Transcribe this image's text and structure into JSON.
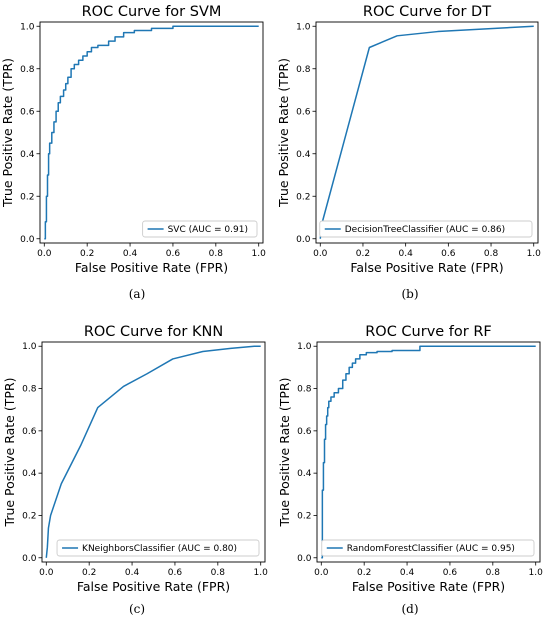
{
  "colors": {
    "line": "#1f77b4",
    "axis": "#000000",
    "legend_border": "#cccccc"
  },
  "chart_data": [
    {
      "type": "line",
      "panel": "a",
      "title": "ROC Curve for SVM",
      "xlabel": "False Positive Rate (FPR)",
      "ylabel": "True Positive Rate (TPR)",
      "xlim": [
        0,
        1
      ],
      "ylim": [
        0,
        1
      ],
      "xticks": [
        "0.0",
        "0.2",
        "0.4",
        "0.6",
        "0.8",
        "1.0"
      ],
      "yticks": [
        "0.0",
        "0.2",
        "0.4",
        "0.6",
        "0.8",
        "1.0"
      ],
      "legend": "lower-right",
      "caption": "(a)",
      "series": [
        {
          "name": "SVC (AUC = 0.91)",
          "x": [
            0,
            0.005,
            0.005,
            0.01,
            0.01,
            0.015,
            0.015,
            0.02,
            0.02,
            0.025,
            0.025,
            0.035,
            0.035,
            0.045,
            0.045,
            0.055,
            0.055,
            0.065,
            0.065,
            0.075,
            0.075,
            0.09,
            0.09,
            0.1,
            0.1,
            0.11,
            0.11,
            0.125,
            0.125,
            0.14,
            0.14,
            0.16,
            0.16,
            0.18,
            0.18,
            0.2,
            0.2,
            0.22,
            0.22,
            0.25,
            0.25,
            0.3,
            0.3,
            0.33,
            0.33,
            0.37,
            0.37,
            0.42,
            0.42,
            0.5,
            0.5,
            0.6,
            0.6,
            1.0
          ],
          "y": [
            0,
            0,
            0.08,
            0.08,
            0.2,
            0.2,
            0.3,
            0.3,
            0.4,
            0.4,
            0.45,
            0.45,
            0.5,
            0.5,
            0.55,
            0.55,
            0.6,
            0.6,
            0.64,
            0.64,
            0.67,
            0.67,
            0.7,
            0.7,
            0.73,
            0.73,
            0.76,
            0.76,
            0.8,
            0.8,
            0.82,
            0.82,
            0.84,
            0.84,
            0.86,
            0.86,
            0.88,
            0.88,
            0.9,
            0.9,
            0.91,
            0.91,
            0.93,
            0.93,
            0.95,
            0.95,
            0.97,
            0.97,
            0.98,
            0.98,
            0.99,
            0.99,
            1.0,
            1.0
          ]
        }
      ]
    },
    {
      "type": "line",
      "panel": "b",
      "title": "ROC Curve for DT",
      "xlabel": "False Positive Rate (FPR)",
      "ylabel": "True Positive Rate (TPR)",
      "xlim": [
        0,
        1
      ],
      "ylim": [
        0,
        1
      ],
      "xticks": [
        "0.0",
        "0.2",
        "0.4",
        "0.6",
        "0.8",
        "1.0"
      ],
      "yticks": [
        "0.0",
        "0.2",
        "0.4",
        "0.6",
        "0.8",
        "1.0"
      ],
      "legend": "lower-right",
      "caption": "(b)",
      "series": [
        {
          "name": "DecisionTreeClassifier (AUC = 0.86)",
          "x": [
            0,
            0.01,
            0.23,
            0.36,
            0.55,
            1.0
          ],
          "y": [
            0,
            0.08,
            0.9,
            0.955,
            0.975,
            1.0
          ]
        }
      ]
    },
    {
      "type": "line",
      "panel": "c",
      "title": "ROC Curve for KNN",
      "xlabel": "False Positive Rate (FPR)",
      "ylabel": "True Positive Rate (TPR)",
      "xlim": [
        0,
        1
      ],
      "ylim": [
        0,
        1
      ],
      "xticks": [
        "0.0",
        "0.2",
        "0.4",
        "0.6",
        "0.8",
        "1.0"
      ],
      "yticks": [
        "0.0",
        "0.2",
        "0.4",
        "0.6",
        "0.8",
        "1.0"
      ],
      "legend": "lower-right",
      "caption": "(c)",
      "series": [
        {
          "name": "KNeighborsClassifier (AUC = 0.80)",
          "x": [
            0,
            0.005,
            0.01,
            0.02,
            0.07,
            0.16,
            0.24,
            0.36,
            0.47,
            0.59,
            0.73,
            0.86,
            0.97,
            1.0
          ],
          "y": [
            0,
            0.05,
            0.14,
            0.2,
            0.35,
            0.53,
            0.71,
            0.81,
            0.87,
            0.94,
            0.975,
            0.99,
            1.0,
            1.0
          ]
        }
      ]
    },
    {
      "type": "line",
      "panel": "d",
      "title": "ROC Curve for RF",
      "xlabel": "False Positive Rate (FPR)",
      "ylabel": "True Positive Rate (TPR)",
      "xlim": [
        0,
        1
      ],
      "ylim": [
        0,
        1
      ],
      "xticks": [
        "0.0",
        "0.2",
        "0.4",
        "0.6",
        "0.8",
        "1.0"
      ],
      "yticks": [
        "0.0",
        "0.2",
        "0.4",
        "0.6",
        "0.8",
        "1.0"
      ],
      "legend": "lower-right",
      "caption": "(d)",
      "series": [
        {
          "name": "RandomForestClassifier (AUC = 0.95)",
          "x": [
            0,
            0.005,
            0.005,
            0.01,
            0.01,
            0.015,
            0.015,
            0.02,
            0.02,
            0.025,
            0.025,
            0.03,
            0.03,
            0.035,
            0.035,
            0.045,
            0.045,
            0.06,
            0.06,
            0.08,
            0.08,
            0.1,
            0.1,
            0.115,
            0.115,
            0.13,
            0.13,
            0.145,
            0.145,
            0.16,
            0.16,
            0.18,
            0.18,
            0.21,
            0.21,
            0.26,
            0.26,
            0.33,
            0.33,
            0.46,
            0.46,
            1.0
          ],
          "y": [
            0,
            0,
            0.32,
            0.32,
            0.45,
            0.45,
            0.56,
            0.56,
            0.63,
            0.63,
            0.67,
            0.67,
            0.71,
            0.71,
            0.74,
            0.74,
            0.76,
            0.76,
            0.78,
            0.78,
            0.8,
            0.8,
            0.84,
            0.84,
            0.87,
            0.87,
            0.9,
            0.9,
            0.92,
            0.92,
            0.94,
            0.94,
            0.96,
            0.96,
            0.97,
            0.97,
            0.975,
            0.975,
            0.98,
            0.98,
            1.0,
            1.0
          ]
        }
      ]
    }
  ]
}
